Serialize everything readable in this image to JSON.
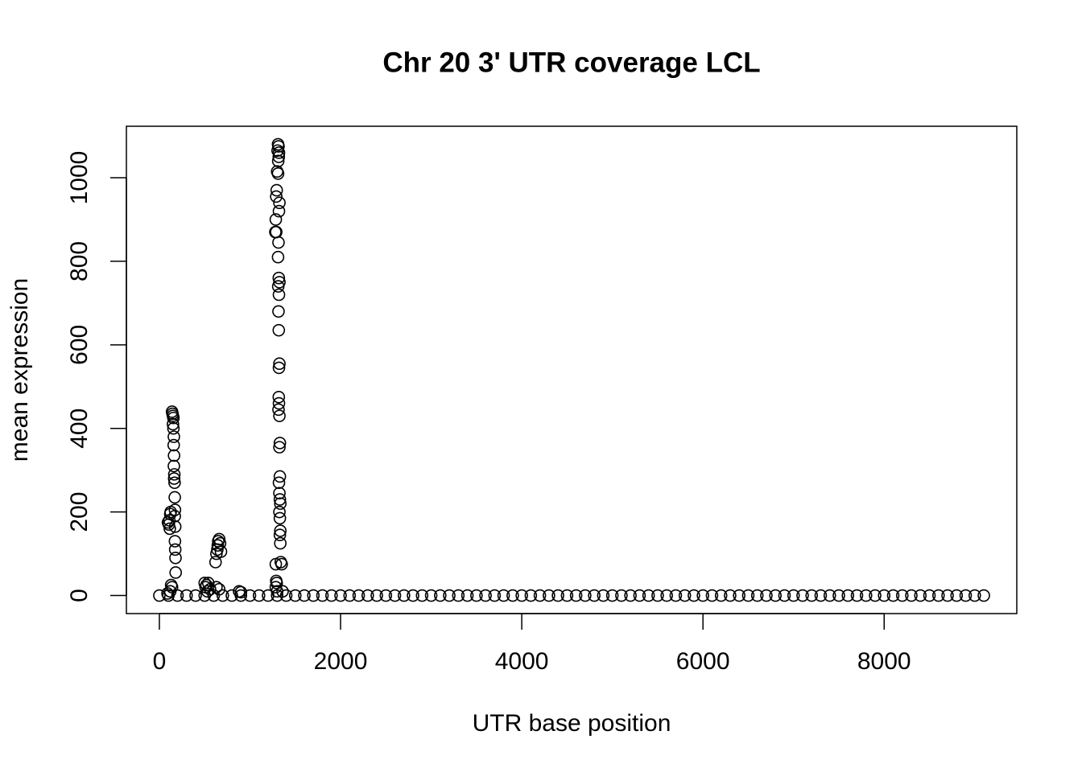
{
  "chart_data": {
    "type": "scatter",
    "title": "Chr 20 3' UTR coverage LCL",
    "x_label": "UTR base position",
    "y_label": "mean expression",
    "color": "#000000",
    "xlim": [
      -364,
      9464
    ],
    "ylim": [
      -43.2,
      1123.2
    ],
    "xticks": [
      0,
      2000,
      4000,
      6000,
      8000
    ],
    "yticks": [
      0,
      200,
      400,
      600,
      800,
      1000
    ],
    "x": [
      95,
      105,
      115,
      120,
      125,
      110,
      140,
      145,
      150,
      155,
      150,
      155,
      160,
      158,
      162,
      160,
      165,
      163,
      168,
      170,
      172,
      170,
      175,
      172,
      175,
      178,
      180,
      130,
      140,
      120,
      90,
      500,
      520,
      540,
      510,
      560,
      530,
      620,
      630,
      640,
      645,
      650,
      660,
      670,
      680,
      630,
      660,
      880,
      900,
      1310,
      1315,
      1305,
      1320,
      1318,
      1312,
      1300,
      1310,
      1295,
      1290,
      1325,
      1320,
      1285,
      1280,
      1290,
      1315,
      1310,
      1318,
      1325,
      1312,
      1320,
      1315,
      1318,
      1325,
      1320,
      1318,
      1320,
      1315,
      1325,
      1330,
      1325,
      1330,
      1320,
      1325,
      1330,
      1335,
      1325,
      1330,
      1335,
      1330,
      1335,
      1340,
      1350,
      1285,
      1290,
      1295,
      1285,
      1300,
      1360,
      0,
      100,
      200,
      300,
      400,
      500,
      600,
      700,
      800,
      900,
      1000,
      1100,
      1200,
      1300,
      1400,
      1500,
      1600,
      1700,
      1800,
      1900,
      2000,
      2100,
      2200,
      2300,
      2400,
      2500,
      2600,
      2700,
      2800,
      2900,
      3000,
      3100,
      3200,
      3300,
      3400,
      3500,
      3600,
      3700,
      3800,
      3900,
      4000,
      4100,
      4200,
      4300,
      4400,
      4500,
      4600,
      4700,
      4800,
      4900,
      5000,
      5100,
      5200,
      5300,
      5400,
      5500,
      5600,
      5700,
      5800,
      5900,
      6000,
      6100,
      6200,
      6300,
      6400,
      6500,
      6600,
      6700,
      6800,
      6900,
      7000,
      7100,
      7200,
      7300,
      7400,
      7500,
      7600,
      7700,
      7800,
      7900,
      8000,
      8100,
      8200,
      8300,
      8400,
      8500,
      8600,
      8700,
      8800,
      8900,
      9000,
      9100
    ],
    "values": [
      175,
      170,
      160,
      195,
      200,
      180,
      440,
      435,
      430,
      425,
      410,
      400,
      380,
      360,
      335,
      310,
      290,
      280,
      270,
      235,
      205,
      190,
      165,
      130,
      110,
      90,
      55,
      25,
      20,
      10,
      5,
      30,
      25,
      30,
      20,
      15,
      10,
      80,
      100,
      110,
      120,
      130,
      135,
      125,
      105,
      20,
      15,
      10,
      8,
      1080,
      1075,
      1065,
      1060,
      1050,
      1040,
      1015,
      1010,
      970,
      955,
      940,
      920,
      900,
      870,
      870,
      845,
      810,
      760,
      750,
      740,
      720,
      680,
      635,
      555,
      545,
      475,
      460,
      445,
      430,
      365,
      355,
      285,
      270,
      245,
      230,
      220,
      200,
      185,
      155,
      145,
      125,
      80,
      75,
      75,
      35,
      30,
      20,
      10,
      10,
      0,
      0,
      0,
      0,
      0,
      0,
      0,
      0,
      0,
      0,
      0,
      0,
      0,
      0,
      0,
      0,
      0,
      0,
      0,
      0,
      0,
      0,
      0,
      0,
      0,
      0,
      0,
      0,
      0,
      0,
      0,
      0,
      0,
      0,
      0,
      0,
      0,
      0,
      0,
      0,
      0,
      0,
      0,
      0,
      0,
      0,
      0,
      0,
      0,
      0,
      0,
      0,
      0,
      0,
      0,
      0,
      0,
      0,
      0,
      0,
      0,
      0,
      0,
      0,
      0,
      0,
      0,
      0,
      0,
      0,
      0,
      0,
      0,
      0,
      0,
      0,
      0,
      0,
      0,
      0,
      0,
      0,
      0,
      0,
      0,
      0,
      0,
      0,
      0,
      0,
      0,
      0
    ]
  }
}
